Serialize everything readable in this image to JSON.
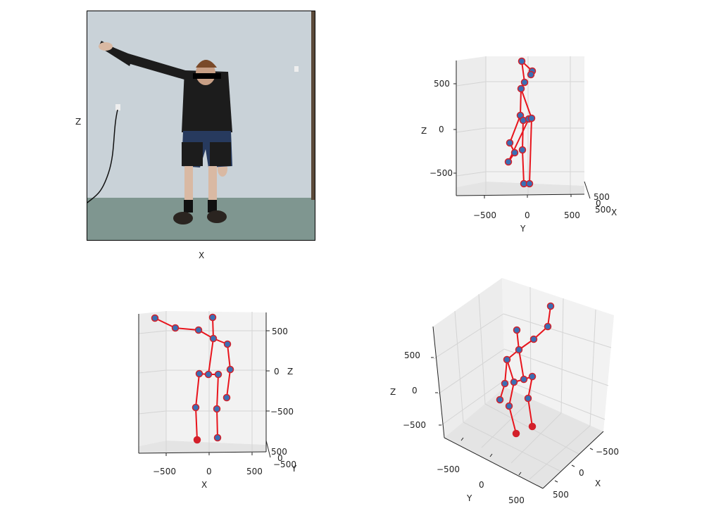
{
  "colors": {
    "bone": "#e8141c",
    "joint_fill": "#3a6fb4",
    "joint_edge": "#d3202a",
    "pane_fill": "#f2f2f2",
    "grid": "#d4d4d4",
    "wall": "#c9d2d8",
    "floor": "#7f9690",
    "shirt": "#1c1c1c",
    "shorts": "#273a5e"
  },
  "chart_data": [
    {
      "type": "image",
      "panel": "photo",
      "description_icons": [
        "person-photo",
        "eye-redaction-bar"
      ],
      "xlabel": "X",
      "zlabel": "Z"
    },
    {
      "type": "scatter3d",
      "view": "front (Y horizontal, Z vertical)",
      "xlabel": "X",
      "ylabel": "Y",
      "zlabel": "Z",
      "y_ticks": [
        "−500",
        "0",
        "500"
      ],
      "z_ticks": [
        "500",
        "0",
        "−500"
      ],
      "x_ticks": [
        "500",
        "0",
        "500"
      ],
      "grid": true
    },
    {
      "type": "scatter3d",
      "view": "side (X horizontal, Z vertical)",
      "xlabel": "X",
      "ylabel": "Y",
      "zlabel": "Z",
      "x_ticks": [
        "−500",
        "0",
        "500"
      ],
      "z_ticks": [
        "500",
        "0",
        "−500"
      ],
      "y_ticks": [
        "500",
        "0",
        "−500"
      ],
      "grid": true
    },
    {
      "type": "scatter3d",
      "view": "perspective",
      "xlabel": "X",
      "ylabel": "Y",
      "zlabel": "Z",
      "z_ticks": [
        "500",
        "0",
        "−500"
      ],
      "y_ticks": [
        "−500",
        "0",
        "500"
      ],
      "x_ticks": [
        "−500",
        "0",
        "500"
      ],
      "grid": true
    }
  ],
  "labels": {
    "photo_x": "X",
    "photo_z": "Z",
    "front_z": "Z",
    "front_y": "Y",
    "front_x": "X",
    "side_x": "X",
    "side_z": "Z",
    "side_y": "Y",
    "persp_z": "Z",
    "persp_y": "Y",
    "persp_x": "X"
  },
  "ticks": {
    "front_z_500": "500",
    "front_z_0": "0",
    "front_z_m500": "−500",
    "front_y_m500": "−500",
    "front_y_0": "0",
    "front_y_500": "500",
    "front_x_a": "500",
    "front_x_b": "0",
    "front_x_c": "500",
    "side_x_m500": "−500",
    "side_x_0": "0",
    "side_x_500": "500",
    "side_z_500": "500",
    "side_z_0": "0",
    "side_z_m500": "−500",
    "side_y_a": "500",
    "side_y_b": "0",
    "side_y_c": "−500",
    "persp_z_500": "500",
    "persp_z_0": "0",
    "persp_z_m500": "−500",
    "persp_y_m500": "−500",
    "persp_y_0": "0",
    "persp_y_500": "500",
    "persp_x_m500": "−500",
    "persp_x_0": "0",
    "persp_x_500": "500"
  }
}
